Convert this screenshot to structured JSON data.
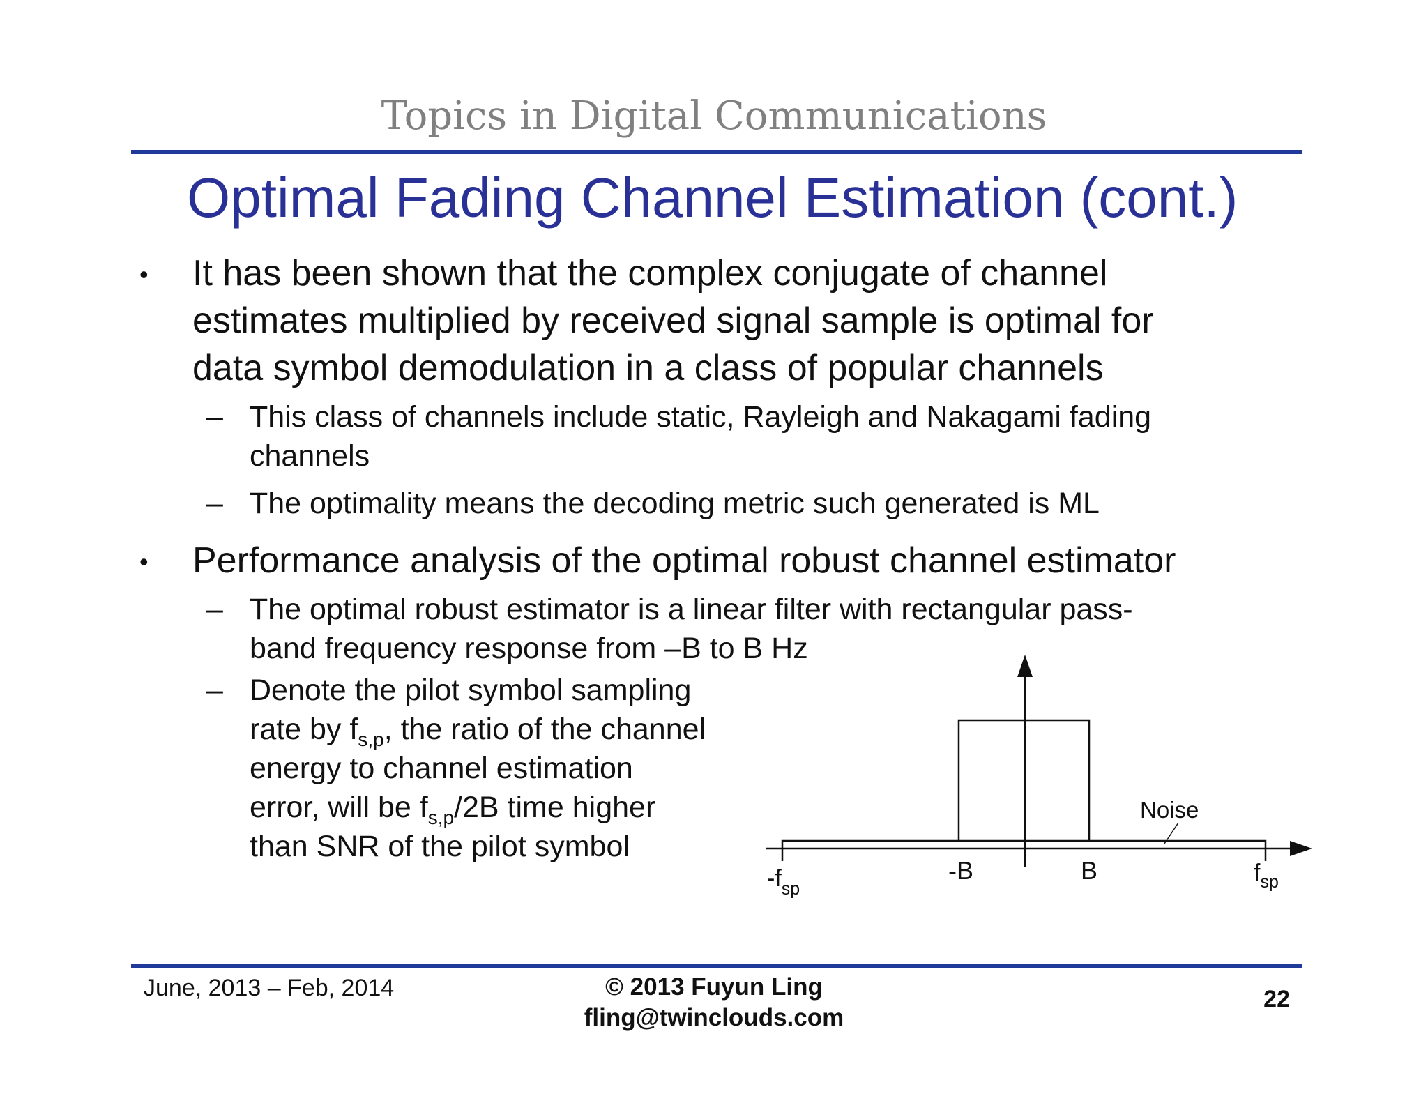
{
  "header": {
    "course_title": "Topics in Digital Communications",
    "slide_title": "Optimal Fading Channel Estimation (cont.)"
  },
  "bullets": [
    {
      "marker": "•",
      "lines": [
        "It has been shown that the complex conjugate of channel",
        "estimates multiplied by received signal sample is optimal for",
        "data symbol demodulation in a class of popular channels"
      ],
      "subitems": [
        {
          "marker": "–",
          "lines": [
            "This class of channels include static, Rayleigh and Nakagami fading",
            "channels"
          ]
        },
        {
          "marker": "–",
          "lines": [
            "The optimality means the decoding metric such generated is ML"
          ]
        }
      ]
    },
    {
      "marker": "•",
      "lines": [
        "Performance analysis of the optimal robust channel estimator"
      ],
      "subitems": [
        {
          "marker": "–",
          "lines": [
            "The optimal robust estimator is a linear filter with rectangular pass-",
            "band frequency response from –B to B Hz"
          ]
        },
        {
          "marker": "–",
          "line1": "Denote the pilot symbol sampling",
          "line2_pre": "rate by f",
          "line2_sub": "s,p",
          "line2_post": ", the ratio of the channel",
          "line3": "energy to channel estimation",
          "line4_pre": "error, will be f",
          "line4_sub": "s,p",
          "line4_post": "/2B time higher",
          "line5": "than SNR of the pilot symbol"
        }
      ]
    }
  ],
  "diagram": {
    "noise_label": "Noise",
    "label_neg_fsp_main": "-f",
    "label_neg_fsp_sub": "sp",
    "label_neg_b": "-B",
    "label_b": "B",
    "label_fsp_main": "f",
    "label_fsp_sub": "sp"
  },
  "footer": {
    "date_range": "June, 2013 – Feb, 2014",
    "copyright": "© 2013 Fuyun Ling",
    "email": "fling@twinclouds.com",
    "page_number": "22"
  }
}
